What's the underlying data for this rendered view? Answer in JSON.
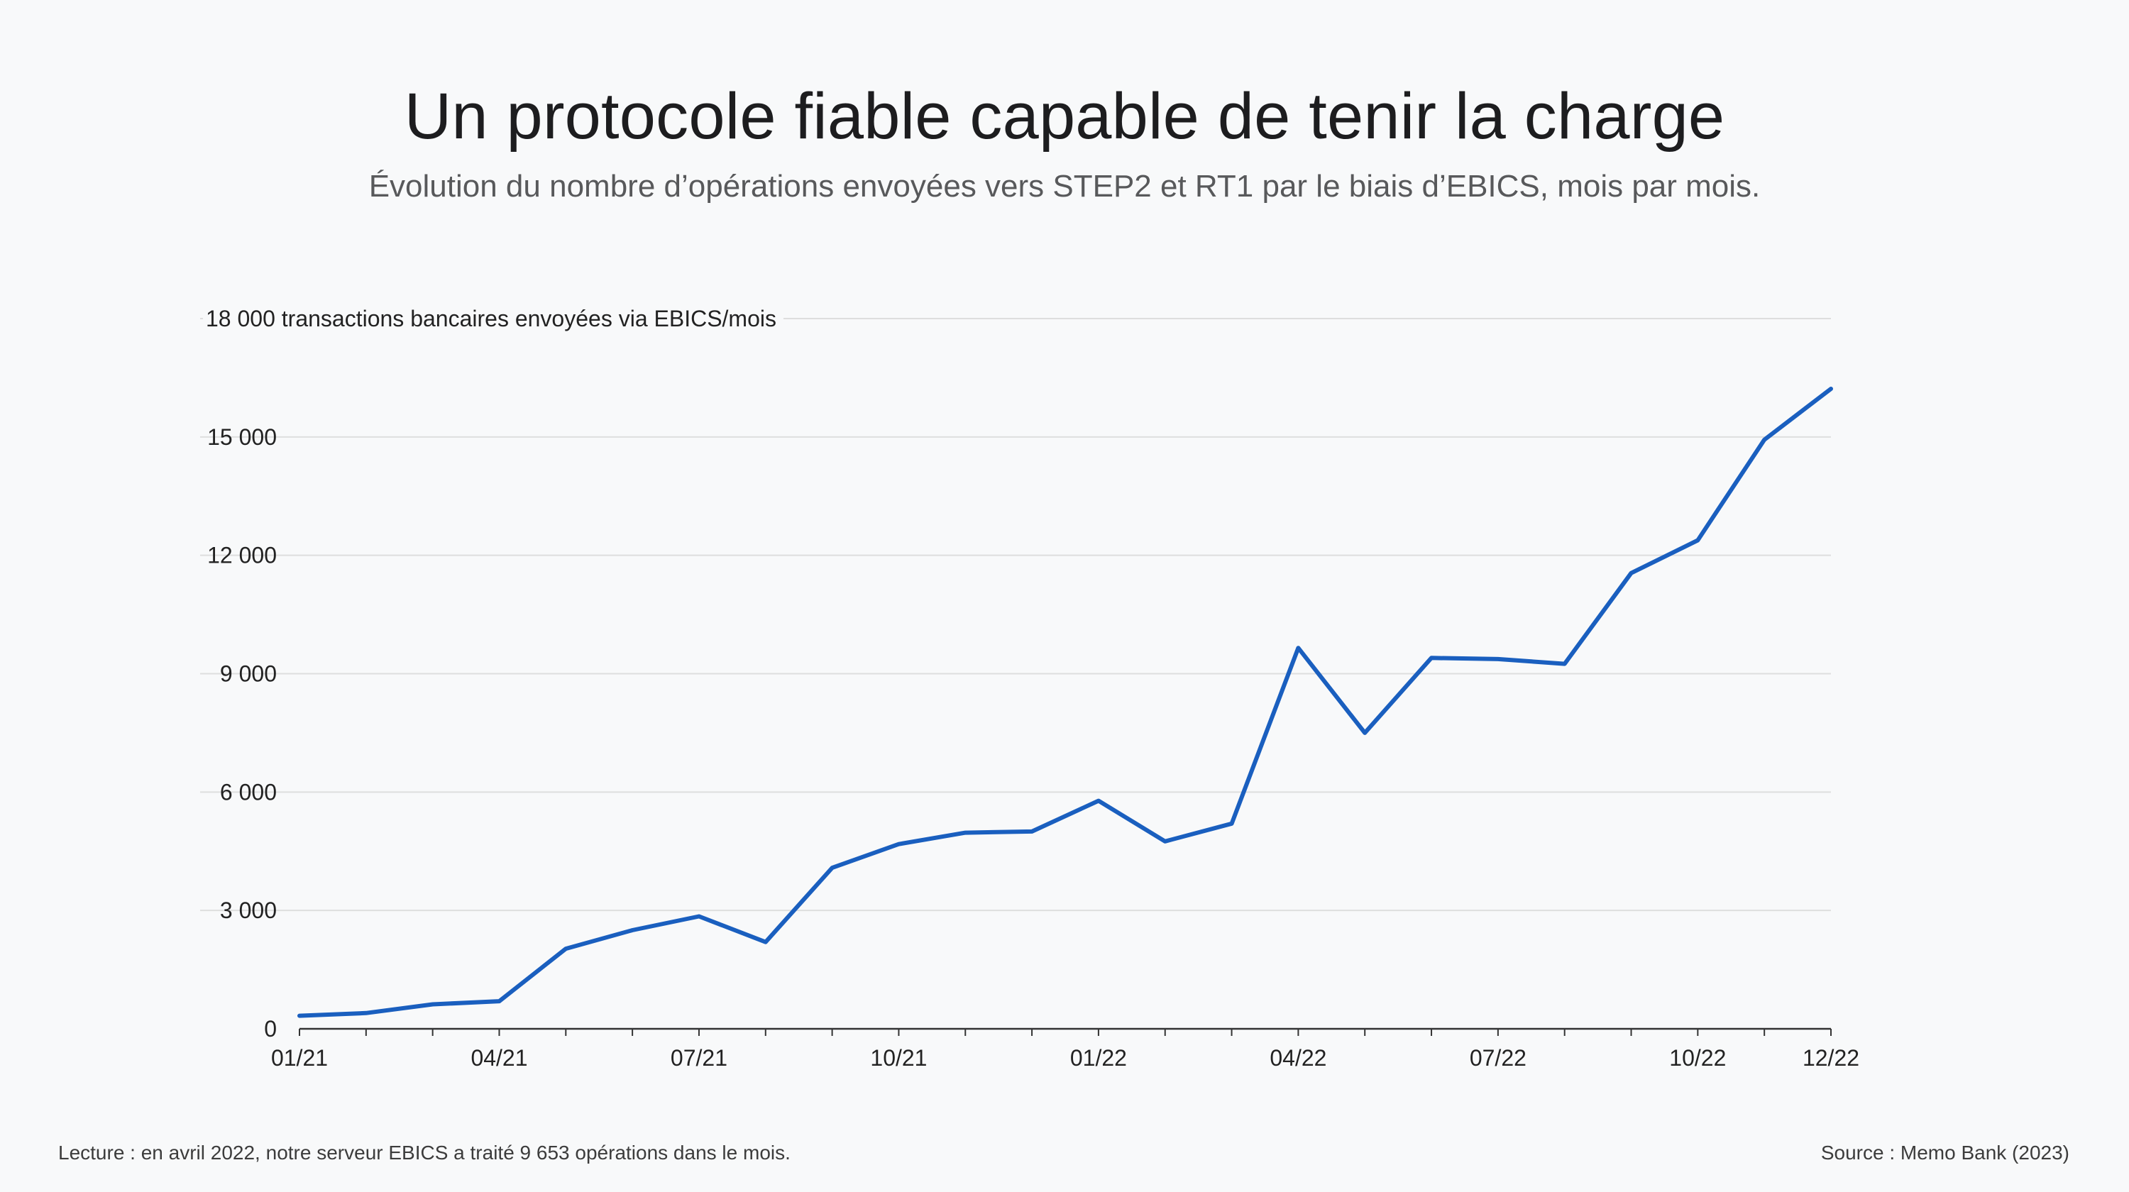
{
  "header": {
    "title": "Un protocole fiable capable de tenir la charge",
    "subtitle": "Évolution du nombre d’opérations envoyées vers STEP2 et RT1 par le biais d’EBICS, mois par mois."
  },
  "footer": {
    "note": "Lecture : en avril 2022, notre serveur EBICS a traité 9 653 opérations dans le mois.",
    "source": "Source : Memo Bank (2023)"
  },
  "colors": {
    "line": "#1a5fbf",
    "grid": "#dedede",
    "axis": "#333333"
  },
  "chart_data": {
    "type": "line",
    "title": "Un protocole fiable capable de tenir la charge",
    "subtitle": "Évolution du nombre d’opérations envoyées vers STEP2 et RT1 par le biais d’EBICS, mois par mois.",
    "ylabel": "transactions bancaires envoyées via EBICS/mois",
    "ylim": [
      0,
      18000
    ],
    "yticks": [
      0,
      3000,
      6000,
      9000,
      12000,
      15000,
      18000
    ],
    "ytick_labels": [
      "0",
      "3 000",
      "6 000",
      "9 000",
      "12 000",
      "15 000",
      "18 000"
    ],
    "grid": "horizontal",
    "x": [
      "01/21",
      "02/21",
      "03/21",
      "04/21",
      "05/21",
      "06/21",
      "07/21",
      "08/21",
      "09/21",
      "10/21",
      "11/21",
      "12/21",
      "01/22",
      "02/22",
      "03/22",
      "04/22",
      "05/22",
      "06/22",
      "07/22",
      "08/22",
      "09/22",
      "10/22",
      "11/22",
      "12/22"
    ],
    "xtick_labels": [
      {
        "index": 0,
        "label": "01/21"
      },
      {
        "index": 3,
        "label": "04/21"
      },
      {
        "index": 6,
        "label": "07/21"
      },
      {
        "index": 9,
        "label": "10/21"
      },
      {
        "index": 12,
        "label": "01/22"
      },
      {
        "index": 15,
        "label": "04/22"
      },
      {
        "index": 18,
        "label": "07/22"
      },
      {
        "index": 21,
        "label": "10/22"
      },
      {
        "index": 23,
        "label": "12/22"
      }
    ],
    "series": [
      {
        "values": [
          330,
          400,
          620,
          700,
          2030,
          2500,
          2850,
          2200,
          4080,
          4680,
          4970,
          5000,
          5780,
          4750,
          5200,
          9653,
          7500,
          9400,
          9370,
          9250,
          11550,
          12380,
          14930,
          16220
        ]
      }
    ]
  }
}
